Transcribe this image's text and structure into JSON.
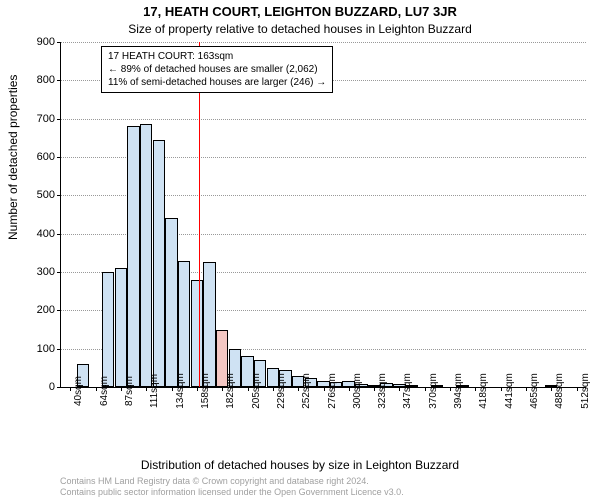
{
  "titles": {
    "main": "17, HEATH COURT, LEIGHTON BUZZARD, LU7 3JR",
    "sub": "Size of property relative to detached houses in Leighton Buzzard"
  },
  "axes": {
    "ylabel": "Number of detached properties",
    "xlabel": "Distribution of detached houses by size in Leighton Buzzard"
  },
  "chart": {
    "type": "histogram",
    "ylim": [
      0,
      900
    ],
    "ytick_step": 100,
    "bar_color": "#cfe2f3",
    "highlight_bar_color": "#f4c7c3",
    "bar_border": "#000000",
    "grid_color": "#999999",
    "reference_value": 163,
    "reference_color": "#ff0000",
    "background_color": "#ffffff",
    "xticks": [
      "40sqm",
      "64sqm",
      "87sqm",
      "111sqm",
      "134sqm",
      "158sqm",
      "182sqm",
      "205sqm",
      "229sqm",
      "252sqm",
      "276sqm",
      "300sqm",
      "323sqm",
      "347sqm",
      "370sqm",
      "394sqm",
      "418sqm",
      "441sqm",
      "465sqm",
      "488sqm",
      "512sqm"
    ],
    "bar_count": 41,
    "values": [
      0,
      60,
      0,
      300,
      310,
      680,
      685,
      645,
      440,
      330,
      280,
      325,
      150,
      100,
      80,
      70,
      50,
      45,
      28,
      23,
      15,
      12,
      15,
      8,
      5,
      10,
      8,
      5,
      0,
      2,
      0,
      4,
      0,
      0,
      0,
      0,
      0,
      0,
      2,
      0,
      0
    ],
    "highlight_index": 12
  },
  "annotation": {
    "line1": "17 HEATH COURT: 163sqm",
    "line2": "← 89% of detached houses are smaller (2,062)",
    "line3": "11% of semi-detached houses are larger (246) →"
  },
  "footer": {
    "line1": "Contains HM Land Registry data © Crown copyright and database right 2024.",
    "line2": "Contains public sector information licensed under the Open Government Licence v3.0."
  }
}
